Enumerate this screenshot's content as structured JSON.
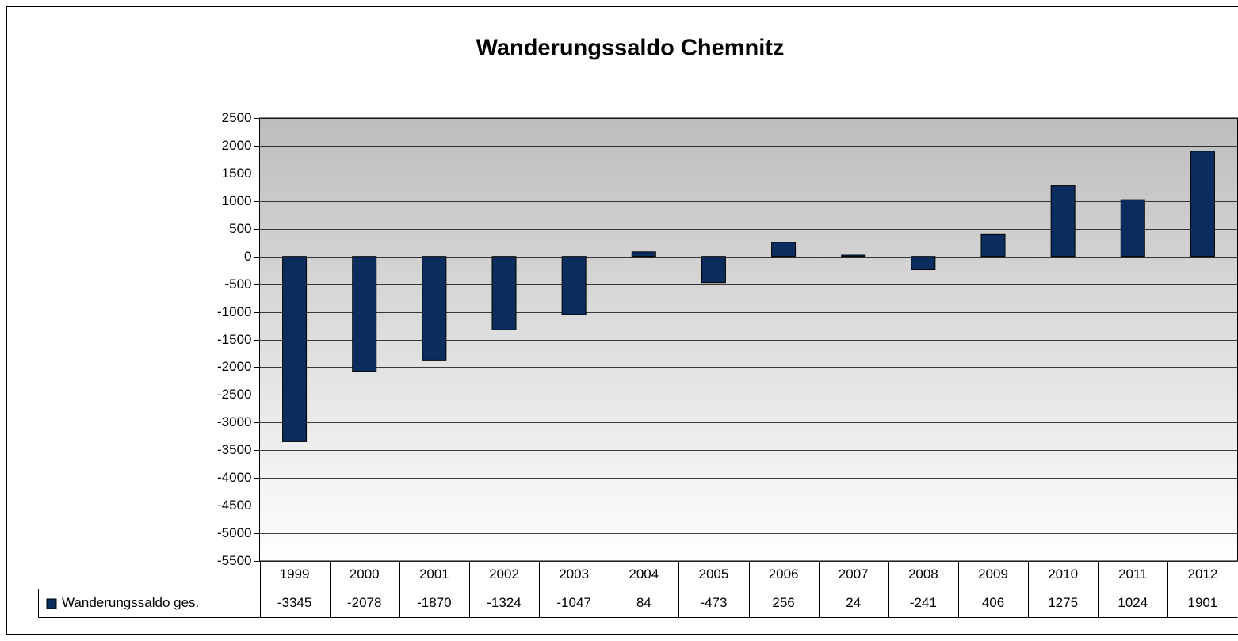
{
  "chart_data": {
    "type": "bar",
    "title": "Wanderungssaldo Chemnitz",
    "categories": [
      "1999",
      "2000",
      "2001",
      "2002",
      "2003",
      "2004",
      "2005",
      "2006",
      "2007",
      "2008",
      "2009",
      "2010",
      "2011",
      "2012"
    ],
    "series": [
      {
        "name": "Wanderungssaldo ges.",
        "color": "#0a2d5e",
        "values": [
          -3345,
          -2078,
          -1870,
          -1324,
          -1047,
          84,
          -473,
          256,
          24,
          -241,
          406,
          1275,
          1024,
          1901
        ]
      }
    ],
    "ylim": [
      -5500,
      2500
    ],
    "yticks": [
      2500,
      2000,
      1500,
      1000,
      500,
      0,
      -500,
      -1000,
      -1500,
      -2000,
      -2500,
      -3000,
      -3500,
      -4000,
      -4500,
      -5000,
      -5500
    ],
    "grid": true,
    "data_table": true
  }
}
